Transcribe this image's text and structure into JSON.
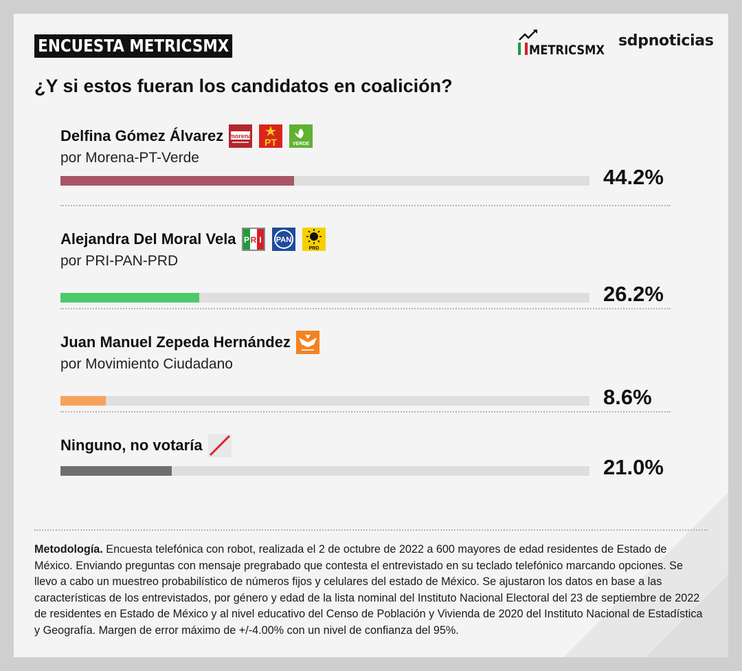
{
  "header": {
    "tag": "ENCUESTA METRICSMX",
    "brand_metrics": "METRICSMX",
    "brand_sdp": "sdpnoticias",
    "question": "¿Y si estos fueran los candidatos en coalición?"
  },
  "logos": {
    "morena": "morena",
    "pt": "PT",
    "verde": "VERDE",
    "prd": "PRD",
    "pan": "PAN"
  },
  "colors": {
    "candidate_1": "#a85565",
    "candidate_2": "#4ec96a",
    "candidate_3": "#f7a25c",
    "candidate_4": "#6e6e6e",
    "track": "#dedede"
  },
  "chart_data": {
    "type": "bar",
    "orientation": "horizontal",
    "title": "¿Y si estos fueran los candidatos en coalición?",
    "categories": [
      "Delfina Gómez Álvarez",
      "Alejandra Del Moral Vela",
      "Juan Manuel Zepeda Hernández",
      "Ninguno, no votaría"
    ],
    "subtitles": [
      "por Morena-PT-Verde",
      "por PRI-PAN-PRD",
      "por Movimiento Ciudadano",
      ""
    ],
    "values": [
      44.2,
      26.2,
      8.6,
      21.0
    ],
    "labels": [
      "44.2%",
      "26.2%",
      "8.6%",
      "21.0%"
    ],
    "xlim": [
      0,
      100
    ],
    "unit": "%"
  },
  "methodology": {
    "heading": "Metodología.",
    "text": " Encuesta telefónica con robot, realizada el 2 de octubre de 2022 a 600 mayores de edad residentes de Estado de México. Enviando preguntas con mensaje pregrabado que contesta el entrevistado en su teclado telefónico marcando opciones. Se llevo a cabo un muestreo probabilístico de números fijos y celulares del estado de México. Se ajustaron los datos en base a las características de los entrevistados, por género y edad de la lista nominal del Instituto Nacional Electoral del 23 de septiembre de 2022 de residentes en Estado de México y al nivel educativo del Censo de Población y Vivienda de 2020 del Instituto Nacional de Estadística y Geografía. Margen de error máximo de +/-4.00% con un nivel de confianza del 95%."
  }
}
